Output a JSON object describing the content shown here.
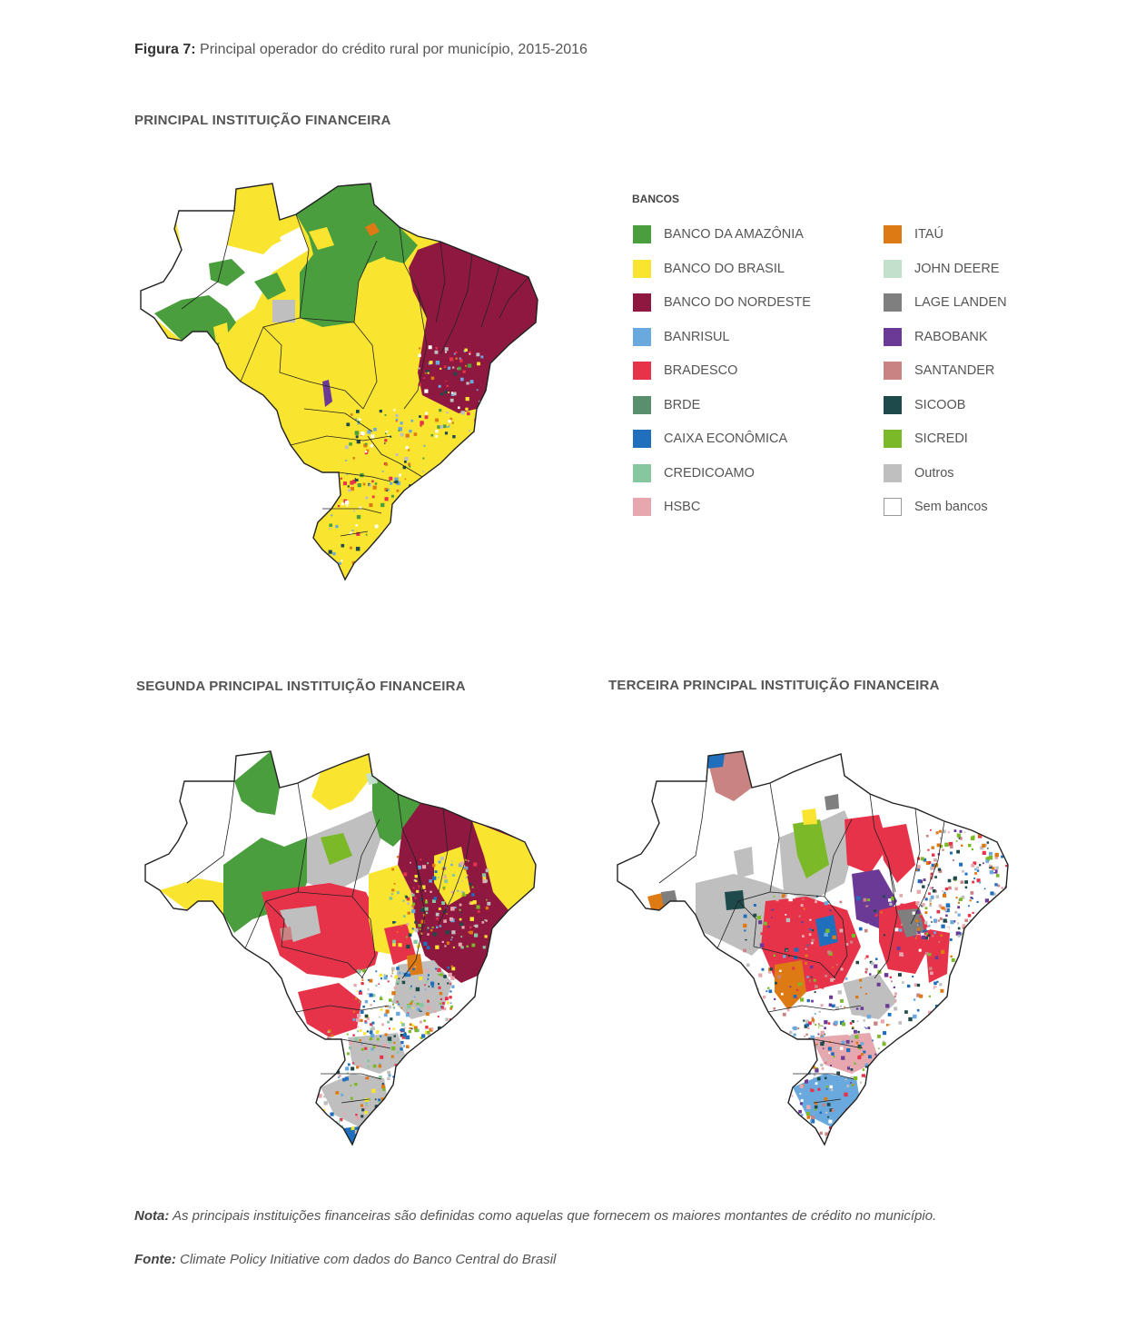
{
  "figure": {
    "label": "Figura 7:",
    "caption": "Principal operador do crédito rural por município, 2015-2016"
  },
  "maps": {
    "first_title": "PRINCIPAL INSTITUIÇÃO FINANCEIRA",
    "second_title": "SEGUNDA PRINCIPAL INSTITUIÇÃO FINANCEIRA",
    "third_title": "TERCEIRA PRINCIPAL INSTITUIÇÃO FINANCEIRA"
  },
  "legend": {
    "title": "BANCOS",
    "items": [
      {
        "label": "BANCO DA AMAZÔNIA",
        "color": "#4a9e3d"
      },
      {
        "label": "BANCO DO BRASIL",
        "color": "#f9e530"
      },
      {
        "label": "BANCO DO NORDESTE",
        "color": "#8e1840"
      },
      {
        "label": "BANRISUL",
        "color": "#6aa9dd"
      },
      {
        "label": "BRADESCO",
        "color": "#e6334a"
      },
      {
        "label": "BRDE",
        "color": "#5a8f6e"
      },
      {
        "label": "CAIXA ECONÔMICA",
        "color": "#1f6fbd"
      },
      {
        "label": "CREDICOAMO",
        "color": "#86c79f"
      },
      {
        "label": "HSBC",
        "color": "#e6a8ae"
      },
      {
        "label": "ITAÚ",
        "color": "#de7a14"
      },
      {
        "label": "JOHN DEERE",
        "color": "#c2e0cc"
      },
      {
        "label": "LAGE LANDEN",
        "color": "#7f7f7f"
      },
      {
        "label": "RABOBANK",
        "color": "#6b3a96"
      },
      {
        "label": "SANTANDER",
        "color": "#c98383"
      },
      {
        "label": "SICOOB",
        "color": "#1f4a4c"
      },
      {
        "label": "SICREDI",
        "color": "#7cb928"
      },
      {
        "label": "Outros",
        "color": "#bfbfbf"
      },
      {
        "label": "Sem bancos",
        "color": "#ffffff"
      }
    ]
  },
  "notes": {
    "nota_label": "Nota:",
    "nota_text": "As principais instituições financeiras são definidas como aquelas que fornecem os maiores montantes de crédito no município.",
    "fonte_label": "Fonte:",
    "fonte_text": "Climate Policy Initiative com dados do Banco Central do Brasil"
  }
}
